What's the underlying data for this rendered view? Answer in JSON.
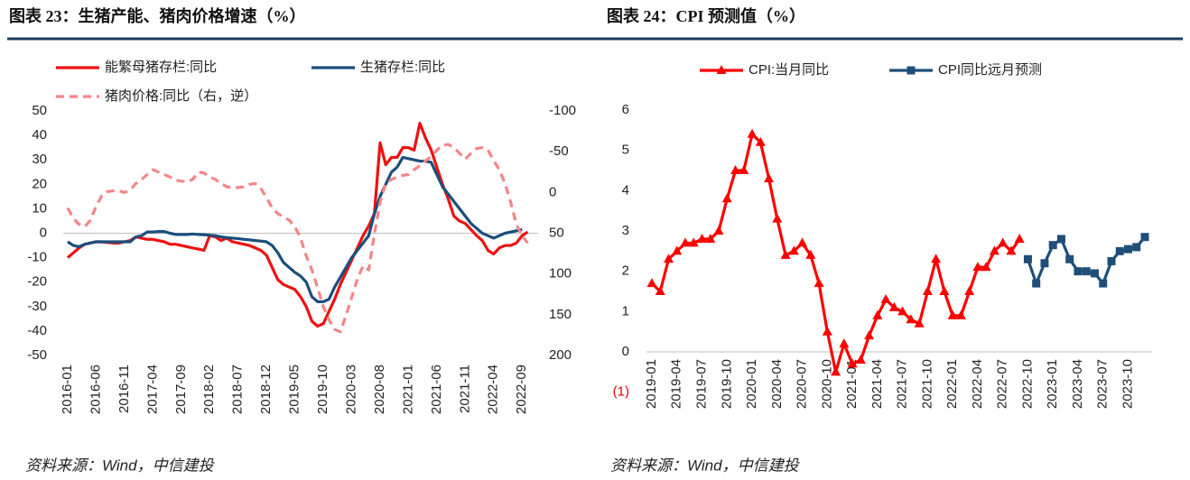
{
  "chart_data": [
    {
      "type": "line",
      "title": "图表 23：生猪产能、猪肉价格增速（%）",
      "source": "资料来源：Wind，中信建投",
      "categories": [
        "2016-01",
        null,
        null,
        null,
        null,
        "2016-06",
        null,
        null,
        null,
        null,
        "2016-11",
        null,
        null,
        null,
        null,
        "2017-04",
        null,
        null,
        null,
        null,
        "2017-09",
        null,
        null,
        null,
        null,
        "2018-02",
        null,
        null,
        null,
        null,
        "2018-07",
        null,
        null,
        null,
        null,
        "2018-12",
        null,
        null,
        null,
        null,
        "2019-05",
        null,
        null,
        null,
        null,
        "2019-10",
        null,
        null,
        null,
        null,
        "2020-03",
        null,
        null,
        null,
        null,
        "2020-08",
        null,
        null,
        null,
        null,
        "2021-01",
        null,
        null,
        null,
        null,
        "2021-06",
        null,
        null,
        null,
        null,
        "2021-11",
        null,
        null,
        null,
        null,
        "2022-04",
        null,
        null,
        null,
        null,
        "2022-09",
        null
      ],
      "series": [
        {
          "name": "能繁母猪存栏:同比",
          "color": "#ee1111",
          "line_style": "solid",
          "values": [
            -10,
            -8,
            -6,
            -4.5,
            -4,
            -3.5,
            -3.5,
            -3.8,
            -4,
            -4,
            -3.5,
            -3,
            -1.5,
            -2,
            -2.5,
            -2.5,
            -3,
            -3.5,
            -4.5,
            -4.5,
            -5,
            -5.5,
            -6,
            -6.5,
            -7,
            -1,
            -1.5,
            -3,
            -2,
            -3.5,
            -4,
            -4.5,
            -5,
            -6,
            -7,
            -9,
            -14,
            -19,
            -21,
            -22,
            -23,
            -26,
            -30,
            -36,
            -38,
            -37,
            -32,
            -27,
            -21,
            -16,
            -11,
            -6,
            -1,
            3,
            8,
            37,
            28,
            31,
            31,
            35,
            35,
            34,
            45,
            39,
            34,
            27,
            20,
            14,
            7,
            5,
            4,
            1.5,
            -1,
            -3,
            -7,
            -8.5,
            -6,
            -5,
            -5,
            -4,
            -1,
            0.5
          ]
        },
        {
          "name": "生猪存栏:同比",
          "color": "#1b4f7c",
          "line_style": "solid",
          "values": [
            -3.5,
            -5,
            -5.5,
            -4.5,
            -4,
            -3.5,
            -3.5,
            -3.5,
            -3.5,
            -3.5,
            -3.5,
            -3.5,
            -1.5,
            -1,
            0.5,
            0.5,
            0.7,
            0.7,
            0,
            -0.5,
            -0.5,
            -0.5,
            -0.3,
            -0.5,
            -0.6,
            -0.8,
            -1,
            -1.5,
            -1.8,
            -2,
            -2.2,
            -2.5,
            -2.7,
            -3,
            -3.2,
            -3.5,
            -5,
            -8,
            -12,
            -14,
            -16,
            -17.5,
            -20,
            -26,
            -28,
            -28,
            -27,
            -22,
            -18,
            -14,
            -10,
            -7,
            -4,
            -1,
            8,
            15,
            20,
            25,
            27,
            31,
            30.5,
            30,
            29.5,
            29.5,
            29,
            24,
            19,
            16,
            13,
            10,
            7,
            4,
            2,
            0,
            -1,
            -2,
            -1,
            0,
            0.5,
            1,
            1.5,
            null
          ]
        },
        {
          "name": "猪肉价格:同比（右，逆）",
          "color": "#f4858a",
          "line_style": "dashed",
          "axis": "y2",
          "values": [
            19,
            32,
            39,
            42,
            34,
            17,
            4,
            -1,
            -2,
            -2,
            0,
            -3,
            -11,
            -16,
            -22,
            -28,
            -25,
            -22,
            -19,
            -15,
            -14,
            -13,
            -16,
            -25,
            -24,
            -19,
            -16,
            -11,
            -7,
            -6,
            -6,
            -7,
            -10,
            -11,
            -5,
            6,
            19,
            26,
            30,
            34,
            42,
            56,
            78,
            95,
            117,
            140,
            156,
            168,
            171,
            151,
            129,
            106,
            90,
            95,
            51,
            12,
            -11,
            -16,
            -19,
            -21,
            -22,
            -28,
            -33,
            -39,
            -44,
            -52,
            -58,
            -59,
            -55,
            -48,
            -41,
            -48,
            -54,
            -55,
            -52,
            -39,
            -28,
            -11,
            12,
            39,
            53,
            62
          ]
        }
      ],
      "ylim": [
        -50,
        50
      ],
      "yticks": [
        -50,
        -40,
        -30,
        -20,
        -10,
        0,
        10,
        20,
        30,
        40,
        50
      ],
      "y2lim": [
        200,
        -100
      ],
      "y2ticks": [
        -100,
        -50,
        0,
        50,
        100,
        150,
        200
      ],
      "grid": false
    },
    {
      "type": "line",
      "title": "图表 24：CPI 预测值（%）",
      "source": "资料来源：Wind，中信建投",
      "categories": [
        "2019-01",
        null,
        null,
        "2019-04",
        null,
        null,
        "2019-07",
        null,
        null,
        "2019-10",
        null,
        null,
        "2020-01",
        null,
        null,
        "2020-04",
        null,
        null,
        "2020-07",
        null,
        null,
        "2020-10",
        null,
        null,
        "2021-01",
        null,
        null,
        "2021-04",
        null,
        null,
        "2021-07",
        null,
        null,
        "2021-10",
        null,
        null,
        "2022-01",
        null,
        null,
        "2022-04",
        null,
        null,
        "2022-07",
        null,
        null,
        "2022-10",
        null,
        null,
        "2023-01",
        null,
        null,
        "2023-04",
        null,
        null,
        "2023-07",
        null,
        null,
        "2023-10",
        null,
        null
      ],
      "series": [
        {
          "name": "CPI:当月同比",
          "color": "#ff0000",
          "marker": "triangle",
          "line_style": "solid",
          "values": [
            1.7,
            1.5,
            2.3,
            2.5,
            2.7,
            2.7,
            2.8,
            2.8,
            3.0,
            3.8,
            4.5,
            4.5,
            5.4,
            5.2,
            4.3,
            3.3,
            2.4,
            2.5,
            2.7,
            2.4,
            1.7,
            0.5,
            -0.5,
            0.2,
            -0.3,
            -0.2,
            0.4,
            0.9,
            1.3,
            1.1,
            1.0,
            0.8,
            0.7,
            1.5,
            2.3,
            1.5,
            0.9,
            0.9,
            1.5,
            2.1,
            2.1,
            2.5,
            2.7,
            2.5,
            2.8,
            null,
            null,
            null,
            null,
            null,
            null,
            null,
            null,
            null,
            null,
            null,
            null,
            null,
            null,
            null
          ]
        },
        {
          "name": "CPI同比远月预测",
          "color": "#1f4e79",
          "marker": "square",
          "line_style": "solid",
          "values": [
            null,
            null,
            null,
            null,
            null,
            null,
            null,
            null,
            null,
            null,
            null,
            null,
            null,
            null,
            null,
            null,
            null,
            null,
            null,
            null,
            null,
            null,
            null,
            null,
            null,
            null,
            null,
            null,
            null,
            null,
            null,
            null,
            null,
            null,
            null,
            null,
            null,
            null,
            null,
            null,
            null,
            null,
            null,
            null,
            null,
            2.3,
            1.7,
            2.2,
            2.65,
            2.8,
            2.3,
            2.0,
            2.0,
            1.95,
            1.7,
            2.25,
            2.5,
            2.55,
            2.6,
            2.85
          ]
        }
      ],
      "ylim": [
        -1,
        6
      ],
      "yticks": [
        {
          "value": -1,
          "label": "(1)"
        },
        0,
        1,
        2,
        3,
        4,
        5,
        6
      ],
      "negative_label_color": "#e00000",
      "grid": false
    }
  ]
}
